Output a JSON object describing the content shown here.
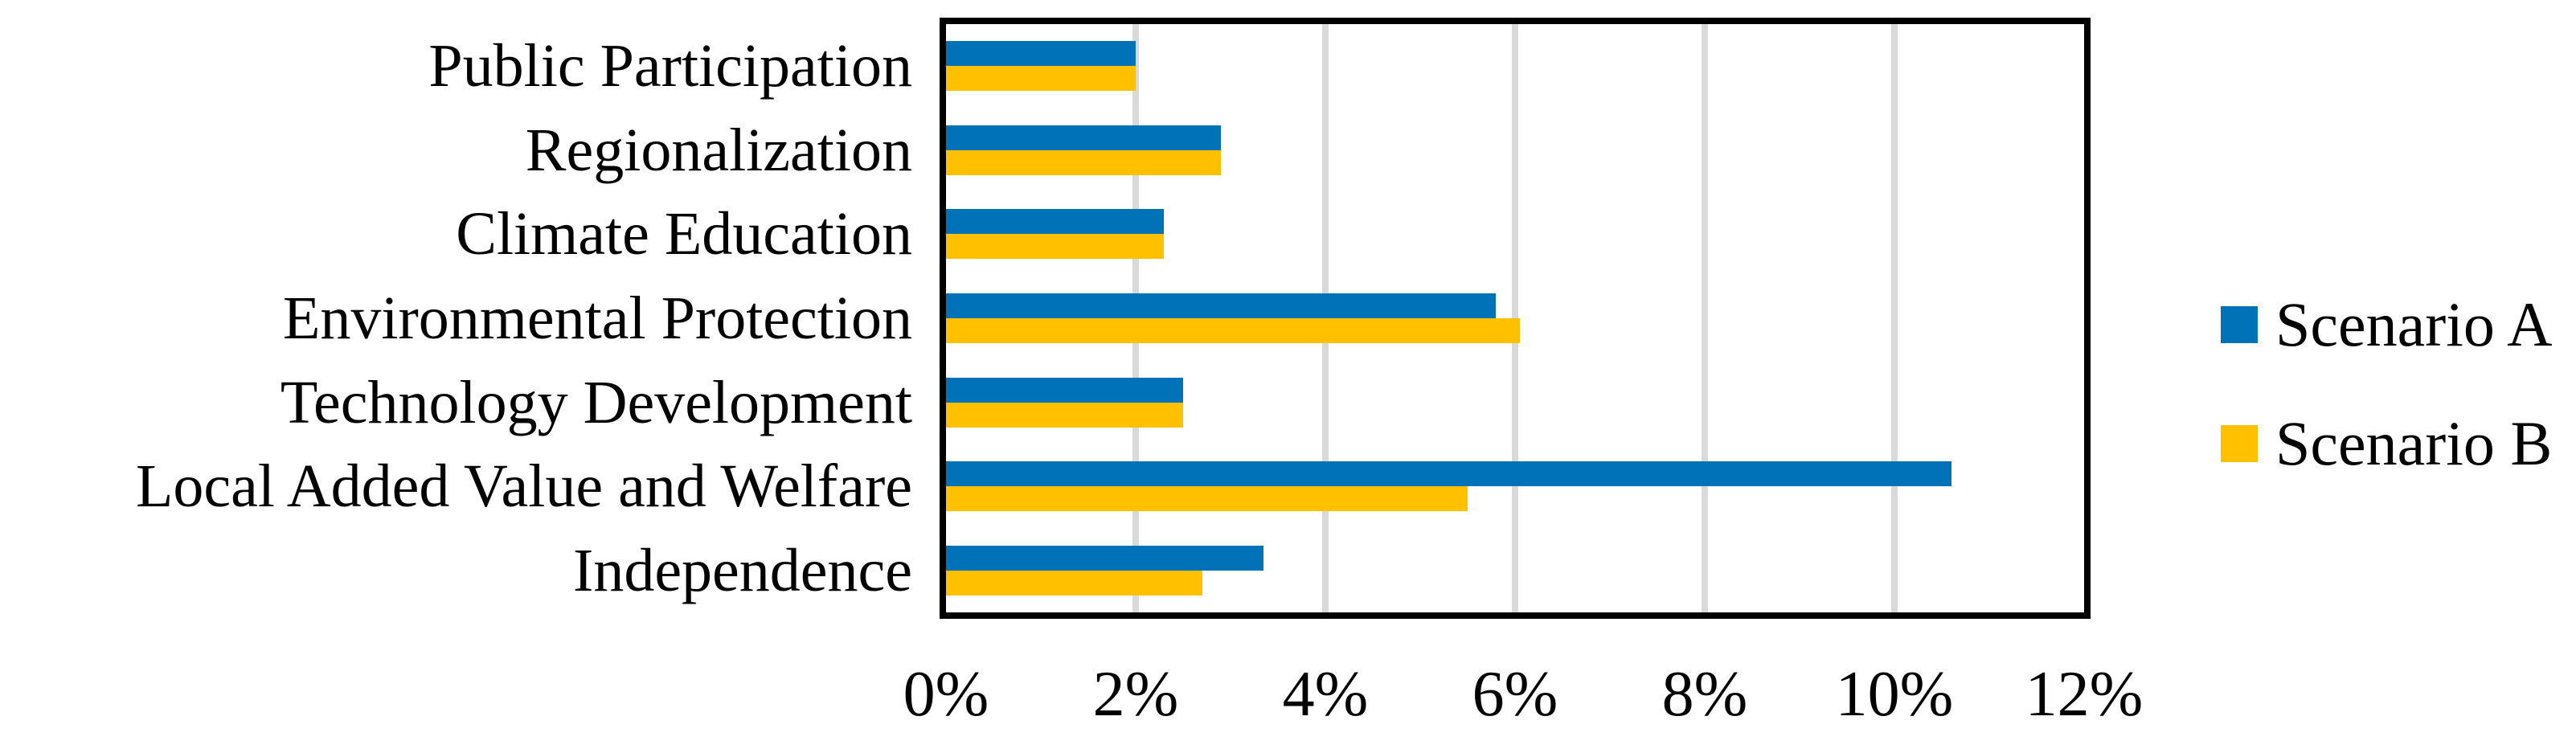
{
  "figure": {
    "background": "#FFFFFF",
    "frame_color": "#000000"
  },
  "chart_data": {
    "type": "bar",
    "orientation": "horizontal",
    "title": "",
    "xlabel": "",
    "ylabel": "",
    "categories": [
      "Public Participation",
      "Regionalization",
      "Climate Education",
      "Environmental Protection",
      "Technology Development",
      "Local Added Value and Welfare",
      "Independence"
    ],
    "series": [
      {
        "name": "Scenario A",
        "color": "#0072B8",
        "values": [
          2.0,
          2.9,
          2.3,
          5.8,
          2.5,
          10.6,
          3.35
        ]
      },
      {
        "name": "Scenario B",
        "color": "#FFC000",
        "values": [
          2.0,
          2.9,
          2.3,
          6.05,
          2.5,
          5.5,
          2.7
        ]
      }
    ],
    "x_axis": {
      "min": 0,
      "max": 12,
      "tick_values": [
        0,
        2,
        4,
        6,
        8,
        10,
        12
      ],
      "tick_labels": [
        "0%",
        "2%",
        "4%",
        "6%",
        "8%",
        "10%",
        "12%"
      ],
      "unit": "percent"
    },
    "grid": {
      "vertical": true,
      "color": "#D9D9D9"
    },
    "legend": {
      "position": "right",
      "entries": [
        "Scenario A",
        "Scenario B"
      ]
    },
    "ylim_note": "7 category bands, grouped pairs: Scenario A (blue) above Scenario B (yellow)"
  }
}
